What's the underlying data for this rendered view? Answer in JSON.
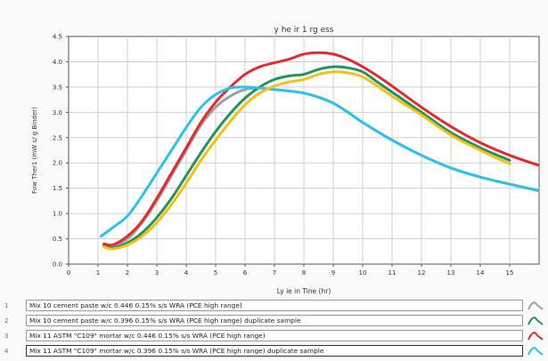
{
  "chart_data": {
    "type": "line",
    "title": "y he ir 1 rg ess",
    "xlabel": "Ly ie  in Tine (hr)",
    "ylabel": "Fow Ther1 (mW s/ g Binder)",
    "xlim": [
      0,
      16
    ],
    "ylim": [
      0,
      4.5
    ],
    "x_ticks": [
      "0",
      "1",
      "2",
      "3",
      "4",
      "5",
      "6",
      "7",
      "8",
      "9",
      "10",
      "11",
      "12",
      "13",
      "14",
      "15"
    ],
    "y_ticks": [
      "0.0",
      "0.5",
      "1.0",
      "1.5",
      "2.0",
      "2.5",
      "3.0",
      "3.5",
      "4.0",
      "4.5"
    ],
    "grid": true,
    "series": [
      {
        "name": "Mix 10 cement paste w/c 0.446 0.15% s/s WRA (PCE high range)",
        "number": "1",
        "color": "#9ea0a2",
        "x": [
          1.2,
          1.5,
          2,
          2.5,
          3,
          3.5,
          4,
          4.5,
          5,
          5.5,
          6,
          6.5,
          7,
          7.5,
          8,
          8.5,
          9,
          9.5,
          10,
          11,
          12,
          13,
          14,
          15,
          16
        ],
        "y": [
          0.38,
          0.36,
          0.5,
          0.82,
          1.25,
          1.75,
          2.25,
          2.75,
          3.1,
          3.32,
          3.45,
          3.48,
          3.45,
          3.42,
          3.38,
          3.3,
          3.18,
          3.0,
          2.8,
          2.45,
          2.15,
          1.9,
          1.72,
          1.58,
          1.45
        ]
      },
      {
        "name": "Mix 10 cement paste w/c 0.396 0.15% s/s WRA (PCE high range) duplicate sample",
        "number": "2",
        "color": "#23925c",
        "x": [
          1.2,
          1.5,
          2,
          2.5,
          3,
          3.5,
          4,
          4.5,
          5,
          5.5,
          6,
          6.5,
          7,
          7.5,
          8,
          8.5,
          9,
          9.5,
          10,
          10.5,
          11,
          12,
          13,
          14,
          15
        ],
        "y": [
          0.36,
          0.32,
          0.42,
          0.62,
          0.92,
          1.3,
          1.75,
          2.2,
          2.62,
          2.98,
          3.28,
          3.5,
          3.65,
          3.72,
          3.75,
          3.85,
          3.9,
          3.88,
          3.8,
          3.6,
          3.4,
          3.0,
          2.6,
          2.3,
          2.05
        ]
      },
      {
        "name": "Mix 11 ASTM \"C109\" mortar w/c 0.446 0.15% s/s WRA (PCE high range)",
        "number": "3",
        "color": "#e22b2e",
        "x": [
          1.2,
          1.5,
          2,
          2.5,
          3,
          3.5,
          4,
          4.5,
          5,
          5.5,
          6,
          6.5,
          7,
          7.5,
          8,
          8.5,
          9,
          9.5,
          10,
          10.5,
          11,
          12,
          13,
          14,
          15,
          16
        ],
        "y": [
          0.4,
          0.38,
          0.55,
          0.85,
          1.3,
          1.8,
          2.3,
          2.8,
          3.2,
          3.5,
          3.75,
          3.9,
          3.98,
          4.05,
          4.15,
          4.18,
          4.15,
          4.05,
          3.9,
          3.72,
          3.52,
          3.1,
          2.72,
          2.4,
          2.15,
          1.95
        ]
      },
      {
        "name": "Mix 11 ASTM \"C109\" mortar w/c 0.396 0.15% s/s WRA (PCE high range) duplicate sample",
        "number": "4",
        "color": "#2cc2ec",
        "x": [
          1.1,
          1.5,
          2,
          2.5,
          3,
          3.5,
          4,
          4.5,
          5,
          5.5,
          6,
          6.5,
          7,
          7.5,
          8,
          8.5,
          9,
          9.5,
          10,
          11,
          12,
          13,
          14,
          15,
          16
        ],
        "y": [
          0.55,
          0.72,
          0.95,
          1.35,
          1.8,
          2.25,
          2.7,
          3.1,
          3.35,
          3.48,
          3.5,
          3.48,
          3.45,
          3.42,
          3.38,
          3.3,
          3.18,
          3.0,
          2.8,
          2.45,
          2.15,
          1.9,
          1.72,
          1.58,
          1.45
        ]
      },
      {
        "name": "",
        "color": "#f4c016",
        "x": [
          1.2,
          1.5,
          2,
          2.5,
          3,
          3.5,
          4,
          4.5,
          5,
          5.5,
          6,
          6.5,
          7,
          7.5,
          8,
          8.5,
          9,
          9.5,
          10,
          10.5,
          11,
          12,
          13,
          14,
          15
        ],
        "y": [
          0.34,
          0.3,
          0.38,
          0.55,
          0.82,
          1.18,
          1.6,
          2.05,
          2.45,
          2.82,
          3.15,
          3.38,
          3.52,
          3.6,
          3.65,
          3.75,
          3.8,
          3.78,
          3.7,
          3.52,
          3.32,
          2.95,
          2.55,
          2.25,
          1.98
        ]
      }
    ],
    "legend": {
      "placement": "bottom",
      "selected": 4
    }
  }
}
